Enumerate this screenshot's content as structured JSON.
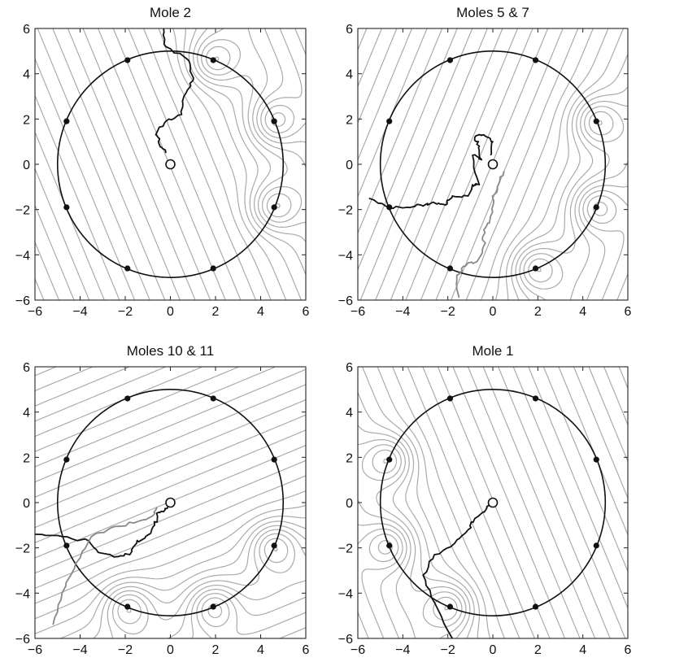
{
  "chart_data": [
    {
      "type": "contour",
      "title": "Mole 2",
      "xlim": [
        -6,
        6
      ],
      "ylim": [
        -6,
        6
      ],
      "xticks": [
        -6,
        -4,
        -2,
        0,
        2,
        4,
        6
      ],
      "yticks": [
        -6,
        -4,
        -2,
        0,
        2,
        4,
        6
      ],
      "arena_circle": {
        "center": [
          0,
          0
        ],
        "radius": 5
      },
      "holes": [
        [
          1.9,
          4.6
        ],
        [
          4.6,
          1.9
        ],
        [
          4.6,
          -1.9
        ],
        [
          1.9,
          -4.6
        ],
        [
          -1.9,
          -4.6
        ],
        [
          -4.6,
          -1.9
        ],
        [
          -4.6,
          1.9
        ],
        [
          -1.9,
          4.6
        ]
      ],
      "target_holes": [
        [
          1.9,
          4.6
        ],
        [
          4.6,
          1.9
        ],
        [
          4.6,
          -1.9
        ]
      ],
      "start": [
        0,
        0
      ],
      "trajectories": [
        {
          "color": "#111111",
          "points": [
            [
              -0.3,
              6
            ],
            [
              -0.2,
              5.2
            ],
            [
              0.8,
              4.6
            ],
            [
              1,
              3.7
            ],
            [
              0.6,
              3
            ],
            [
              0.5,
              2.2
            ],
            [
              -0.2,
              1.9
            ],
            [
              -0.6,
              1.4
            ],
            [
              -0.5,
              0.9
            ],
            [
              -0.2,
              0.5
            ]
          ]
        }
      ]
    },
    {
      "type": "contour",
      "title": "Moles 5 & 7",
      "xlim": [
        -6,
        6
      ],
      "ylim": [
        -6,
        6
      ],
      "xticks": [
        -6,
        -4,
        -2,
        0,
        2,
        4,
        6
      ],
      "yticks": [
        -6,
        -4,
        -2,
        0,
        2,
        4,
        6
      ],
      "arena_circle": {
        "center": [
          0,
          0
        ],
        "radius": 5
      },
      "holes": [
        [
          1.9,
          4.6
        ],
        [
          4.6,
          1.9
        ],
        [
          4.6,
          -1.9
        ],
        [
          1.9,
          -4.6
        ],
        [
          -1.9,
          -4.6
        ],
        [
          -4.6,
          -1.9
        ],
        [
          -4.6,
          1.9
        ],
        [
          -1.9,
          4.6
        ]
      ],
      "target_holes": [
        [
          4.6,
          1.9
        ],
        [
          4.6,
          -1.9
        ],
        [
          1.9,
          -4.6
        ]
      ],
      "start": [
        0,
        0
      ],
      "trajectories": [
        {
          "color": "#111111",
          "points": [
            [
              -5.5,
              -1.5
            ],
            [
              -4.6,
              -1.9
            ],
            [
              -3.8,
              -1.9
            ],
            [
              -3.2,
              -1.8
            ],
            [
              -2.6,
              -1.7
            ],
            [
              -2.1,
              -1.8
            ],
            [
              -1.8,
              -1.4
            ],
            [
              -1.1,
              -1.4
            ],
            [
              -0.9,
              -0.9
            ],
            [
              -0.6,
              -0.9
            ],
            [
              -0.9,
              0.4
            ],
            [
              -0.5,
              0.2
            ],
            [
              -0.6,
              0.8
            ],
            [
              -0.8,
              1.2
            ],
            [
              -0.4,
              1.3
            ],
            [
              0,
              1
            ],
            [
              -0.1,
              0.4
            ]
          ]
        },
        {
          "color": "#888888",
          "points": [
            [
              -1.5,
              -5.9
            ],
            [
              -1.6,
              -4.9
            ],
            [
              -1.3,
              -4.5
            ],
            [
              -0.7,
              -4.3
            ],
            [
              -0.4,
              -3.6
            ],
            [
              -0.4,
              -2.9
            ],
            [
              -0.1,
              -2.3
            ],
            [
              0,
              -1.5
            ],
            [
              0.2,
              -1
            ],
            [
              0.5,
              -0.3
            ]
          ]
        }
      ]
    },
    {
      "type": "contour",
      "title": "Moles 10 & 11",
      "xlim": [
        -6,
        6
      ],
      "ylim": [
        -6,
        6
      ],
      "xticks": [
        -6,
        -4,
        -2,
        0,
        2,
        4,
        6
      ],
      "yticks": [
        -6,
        -4,
        -2,
        0,
        2,
        4,
        6
      ],
      "arena_circle": {
        "center": [
          0,
          0
        ],
        "radius": 5
      },
      "holes": [
        [
          1.9,
          4.6
        ],
        [
          4.6,
          1.9
        ],
        [
          4.6,
          -1.9
        ],
        [
          1.9,
          -4.6
        ],
        [
          -1.9,
          -4.6
        ],
        [
          -4.6,
          -1.9
        ],
        [
          -4.6,
          1.9
        ],
        [
          -1.9,
          4.6
        ]
      ],
      "target_holes": [
        [
          4.6,
          -1.9
        ],
        [
          1.9,
          -4.6
        ],
        [
          -1.9,
          -4.6
        ]
      ],
      "start": [
        0,
        0
      ],
      "trajectories": [
        {
          "color": "#111111",
          "points": [
            [
              -6,
              -1.4
            ],
            [
              -4.8,
              -1.5
            ],
            [
              -3.6,
              -1.7
            ],
            [
              -3.2,
              -2.2
            ],
            [
              -2.5,
              -2.4
            ],
            [
              -1.8,
              -2.3
            ],
            [
              -1.5,
              -1.8
            ],
            [
              -1.1,
              -1.5
            ],
            [
              -0.7,
              -1
            ],
            [
              -0.6,
              -0.5
            ],
            [
              -0.3,
              -0.4
            ],
            [
              -0.1,
              -0.1
            ]
          ]
        },
        {
          "color": "#888888",
          "points": [
            [
              -5.2,
              -5.4
            ],
            [
              -4.8,
              -4
            ],
            [
              -4.2,
              -2.7
            ],
            [
              -3.5,
              -1.5
            ],
            [
              -2.6,
              -1.1
            ],
            [
              -1.6,
              -0.9
            ],
            [
              -0.8,
              -0.6
            ],
            [
              -0.6,
              -0.2
            ]
          ]
        }
      ]
    },
    {
      "type": "contour",
      "title": "Mole 1",
      "xlim": [
        -6,
        6
      ],
      "ylim": [
        -6,
        6
      ],
      "xticks": [
        -6,
        -4,
        -2,
        0,
        2,
        4,
        6
      ],
      "yticks": [
        -6,
        -4,
        -2,
        0,
        2,
        4,
        6
      ],
      "arena_circle": {
        "center": [
          0,
          0
        ],
        "radius": 5
      },
      "holes": [
        [
          1.9,
          4.6
        ],
        [
          4.6,
          1.9
        ],
        [
          4.6,
          -1.9
        ],
        [
          1.9,
          -4.6
        ],
        [
          -1.9,
          -4.6
        ],
        [
          -4.6,
          -1.9
        ],
        [
          -4.6,
          1.9
        ],
        [
          -1.9,
          4.6
        ]
      ],
      "target_holes": [
        [
          -4.6,
          -1.9
        ],
        [
          -4.6,
          1.9
        ],
        [
          -1.9,
          -4.6
        ]
      ],
      "start": [
        0,
        0
      ],
      "trajectories": [
        {
          "color": "#111111",
          "points": [
            [
              -1.8,
              -6
            ],
            [
              -2.6,
              -4.4
            ],
            [
              -3.1,
              -3.2
            ],
            [
              -2.6,
              -2.3
            ],
            [
              -1.7,
              -1.8
            ],
            [
              -1.1,
              -1.2
            ],
            [
              -0.8,
              -0.7
            ],
            [
              -0.3,
              -0.3
            ],
            [
              -0.1,
              0
            ]
          ]
        }
      ]
    }
  ]
}
